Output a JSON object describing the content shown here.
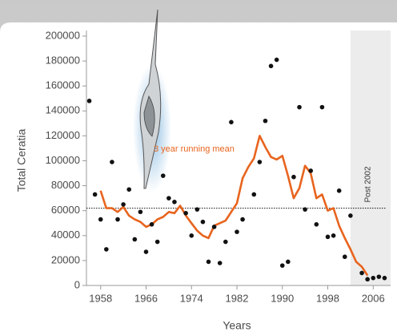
{
  "chart_data": {
    "type": "scatter",
    "y_label": "Total Ceratia",
    "x_label": "Years",
    "x": [
      1956,
      1957,
      1958,
      1959,
      1960,
      1961,
      1962,
      1963,
      1964,
      1965,
      1966,
      1967,
      1968,
      1969,
      1970,
      1971,
      1973,
      1974,
      1975,
      1976,
      1977,
      1978,
      1979,
      1980,
      1981,
      1982,
      1983,
      1985,
      1986,
      1987,
      1988,
      1989,
      1990,
      1991,
      1992,
      1993,
      1994,
      1995,
      1996,
      1997,
      1998,
      1999,
      2000,
      2001,
      2002,
      2004,
      2005,
      2006,
      2007,
      2008
    ],
    "values": [
      148000,
      73000,
      53000,
      29000,
      99000,
      53000,
      65000,
      77000,
      37000,
      59000,
      27000,
      49000,
      35000,
      88000,
      70000,
      67000,
      58000,
      40000,
      61000,
      51000,
      19000,
      47000,
      18000,
      35000,
      131000,
      43000,
      53000,
      73000,
      99000,
      132000,
      176000,
      181000,
      16000,
      19000,
      87000,
      143000,
      61000,
      92000,
      49000,
      143000,
      39000,
      40000,
      76000,
      23000,
      56000,
      10000,
      5000,
      6000,
      7000,
      6000
    ],
    "color": "#111111",
    "series": [
      {
        "name": "3 year running mean",
        "color": "#e8641e",
        "x": [
          1958,
          1959,
          1960,
          1961,
          1962,
          1963,
          1964,
          1965,
          1966,
          1967,
          1968,
          1969,
          1970,
          1971,
          1972,
          1973,
          1974,
          1975,
          1976,
          1977,
          1978,
          1979,
          1980,
          1981,
          1982,
          1983,
          1984,
          1985,
          1986,
          1987,
          1988,
          1989,
          1990,
          1991,
          1992,
          1993,
          1994,
          1995,
          1996,
          1997,
          1998,
          1999,
          2000,
          2001,
          2002,
          2003,
          2004,
          2005
        ],
        "values": [
          76000,
          62000,
          62000,
          59000,
          63000,
          56000,
          53000,
          51000,
          47000,
          49000,
          53000,
          55000,
          59000,
          58000,
          64000,
          56000,
          50000,
          44000,
          40000,
          38000,
          48000,
          50000,
          52000,
          59000,
          66000,
          86000,
          95000,
          102000,
          120000,
          111000,
          103000,
          101000,
          104000,
          88000,
          70000,
          78000,
          96000,
          90000,
          70000,
          73000,
          60000,
          62000,
          48000,
          38000,
          29000,
          19000,
          15000,
          8000
        ]
      }
    ],
    "reference_line": 62000,
    "shade_from": 2002,
    "shade_label": "Post 2002",
    "xlim": [
      1955.5,
      2008.5
    ],
    "ylim": [
      0,
      200000
    ],
    "xticks": [
      1958,
      1966,
      1974,
      1982,
      1990,
      1998,
      2006
    ],
    "yticks": [
      0,
      20000,
      40000,
      60000,
      80000,
      100000,
      120000,
      140000,
      160000,
      180000,
      200000
    ],
    "grid": false
  }
}
